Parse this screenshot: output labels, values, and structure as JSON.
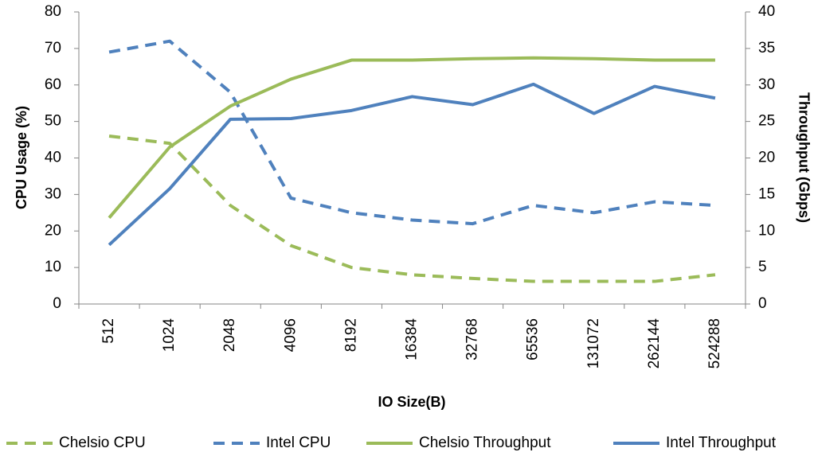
{
  "chart_data": {
    "type": "line",
    "xlabel": "IO Size(B)",
    "ylabel": "CPU Usage (%)",
    "y2label": "Throughput  (Gbps)",
    "categories": [
      "512",
      "1024",
      "2048",
      "4096",
      "8192",
      "16384",
      "32768",
      "65536",
      "131072",
      "262144",
      "524288"
    ],
    "ylim": [
      0,
      80
    ],
    "yticks": [
      0,
      10,
      20,
      30,
      40,
      50,
      60,
      70,
      80
    ],
    "y2lim": [
      0,
      40
    ],
    "y2ticks": [
      0,
      5,
      10,
      15,
      20,
      25,
      30,
      35,
      40
    ],
    "grid": false,
    "legend": "bottom",
    "series": [
      {
        "name": "Chelsio CPU",
        "color": "#9bbb59",
        "dash": true,
        "values": [
          46,
          44,
          27,
          16,
          10,
          8,
          7,
          6.2,
          6.2,
          6.2,
          8
        ]
      },
      {
        "name": "Intel CPU",
        "color": "#4f81bd",
        "dash": true,
        "values": [
          69,
          72,
          58,
          29,
          25,
          23,
          22,
          27,
          25,
          28,
          27
        ]
      },
      {
        "name": "Chelsio Throughput",
        "color": "#9bbb59",
        "dash": false,
        "axis": "y2",
        "values": [
          11.8,
          21.5,
          27.1,
          30.8,
          33.4,
          33.4,
          33.6,
          33.7,
          33.6,
          33.4,
          33.4
        ]
      },
      {
        "name": "Intel Throughput",
        "color": "#4f81bd",
        "dash": false,
        "axis": "y2",
        "values": [
          8.1,
          15.8,
          25.3,
          25.4,
          26.5,
          28.4,
          27.3,
          30.1,
          26.1,
          29.8,
          28.2
        ]
      }
    ]
  }
}
